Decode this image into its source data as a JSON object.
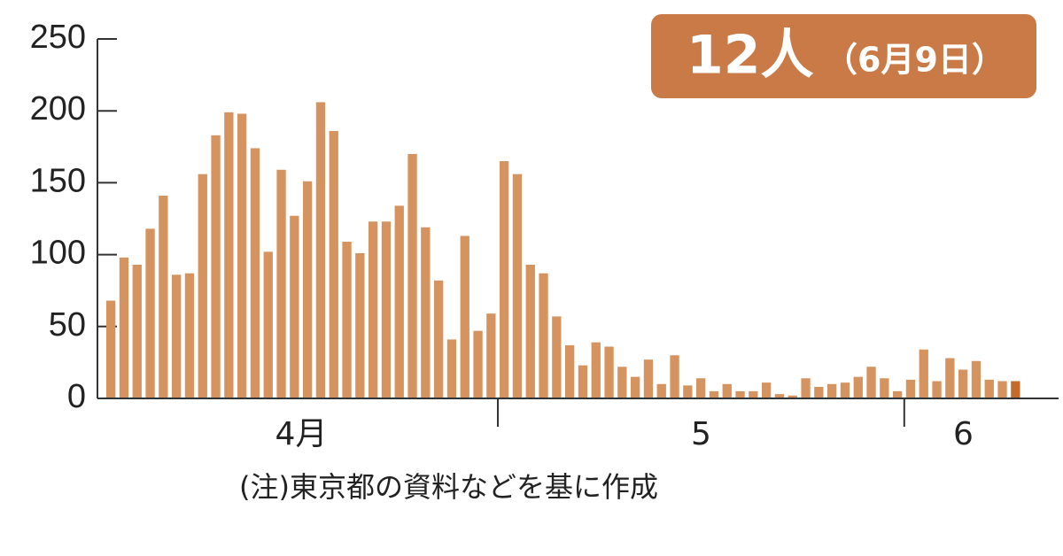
{
  "chart_data": {
    "type": "bar",
    "annotation": {
      "value": "12人",
      "date": "（6月9日）"
    },
    "note": "(注)東京都の資料などを基に作成",
    "categories": [
      null,
      null,
      null,
      null,
      null,
      null,
      null,
      null,
      null,
      null,
      null,
      null,
      null,
      null,
      null,
      null,
      null,
      null,
      null,
      null,
      null,
      null,
      null,
      null,
      null,
      null,
      null,
      null,
      null,
      null,
      null,
      null,
      null,
      null,
      null,
      null,
      null,
      null,
      null,
      null,
      null,
      null,
      null,
      null,
      null,
      null,
      null,
      null,
      null,
      null,
      null,
      null,
      null,
      null,
      null,
      null,
      null,
      null,
      null,
      null,
      null,
      null,
      null,
      null,
      null,
      null,
      null,
      null,
      null,
      null
    ],
    "values": [
      68,
      98,
      93,
      118,
      141,
      86,
      87,
      156,
      183,
      199,
      198,
      174,
      102,
      159,
      127,
      151,
      206,
      186,
      109,
      101,
      123,
      123,
      134,
      170,
      119,
      82,
      41,
      113,
      47,
      59,
      165,
      156,
      93,
      87,
      57,
      37,
      23,
      39,
      36,
      22,
      15,
      27,
      10,
      30,
      9,
      14,
      5,
      10,
      5,
      5,
      11,
      3,
      2,
      14,
      8,
      10,
      11,
      15,
      22,
      14,
      5,
      13,
      34,
      12,
      28,
      20,
      26,
      13,
      12,
      12
    ],
    "month_groups": [
      {
        "label": "4月",
        "count": 30
      },
      {
        "label": "5",
        "count": 31
      },
      {
        "label": "6",
        "count": 9
      }
    ],
    "color": "#d4935f",
    "last_color": "#c46a2c",
    "ylim": [
      0,
      250
    ],
    "yticks": [
      0,
      50,
      100,
      150,
      200,
      250
    ]
  }
}
